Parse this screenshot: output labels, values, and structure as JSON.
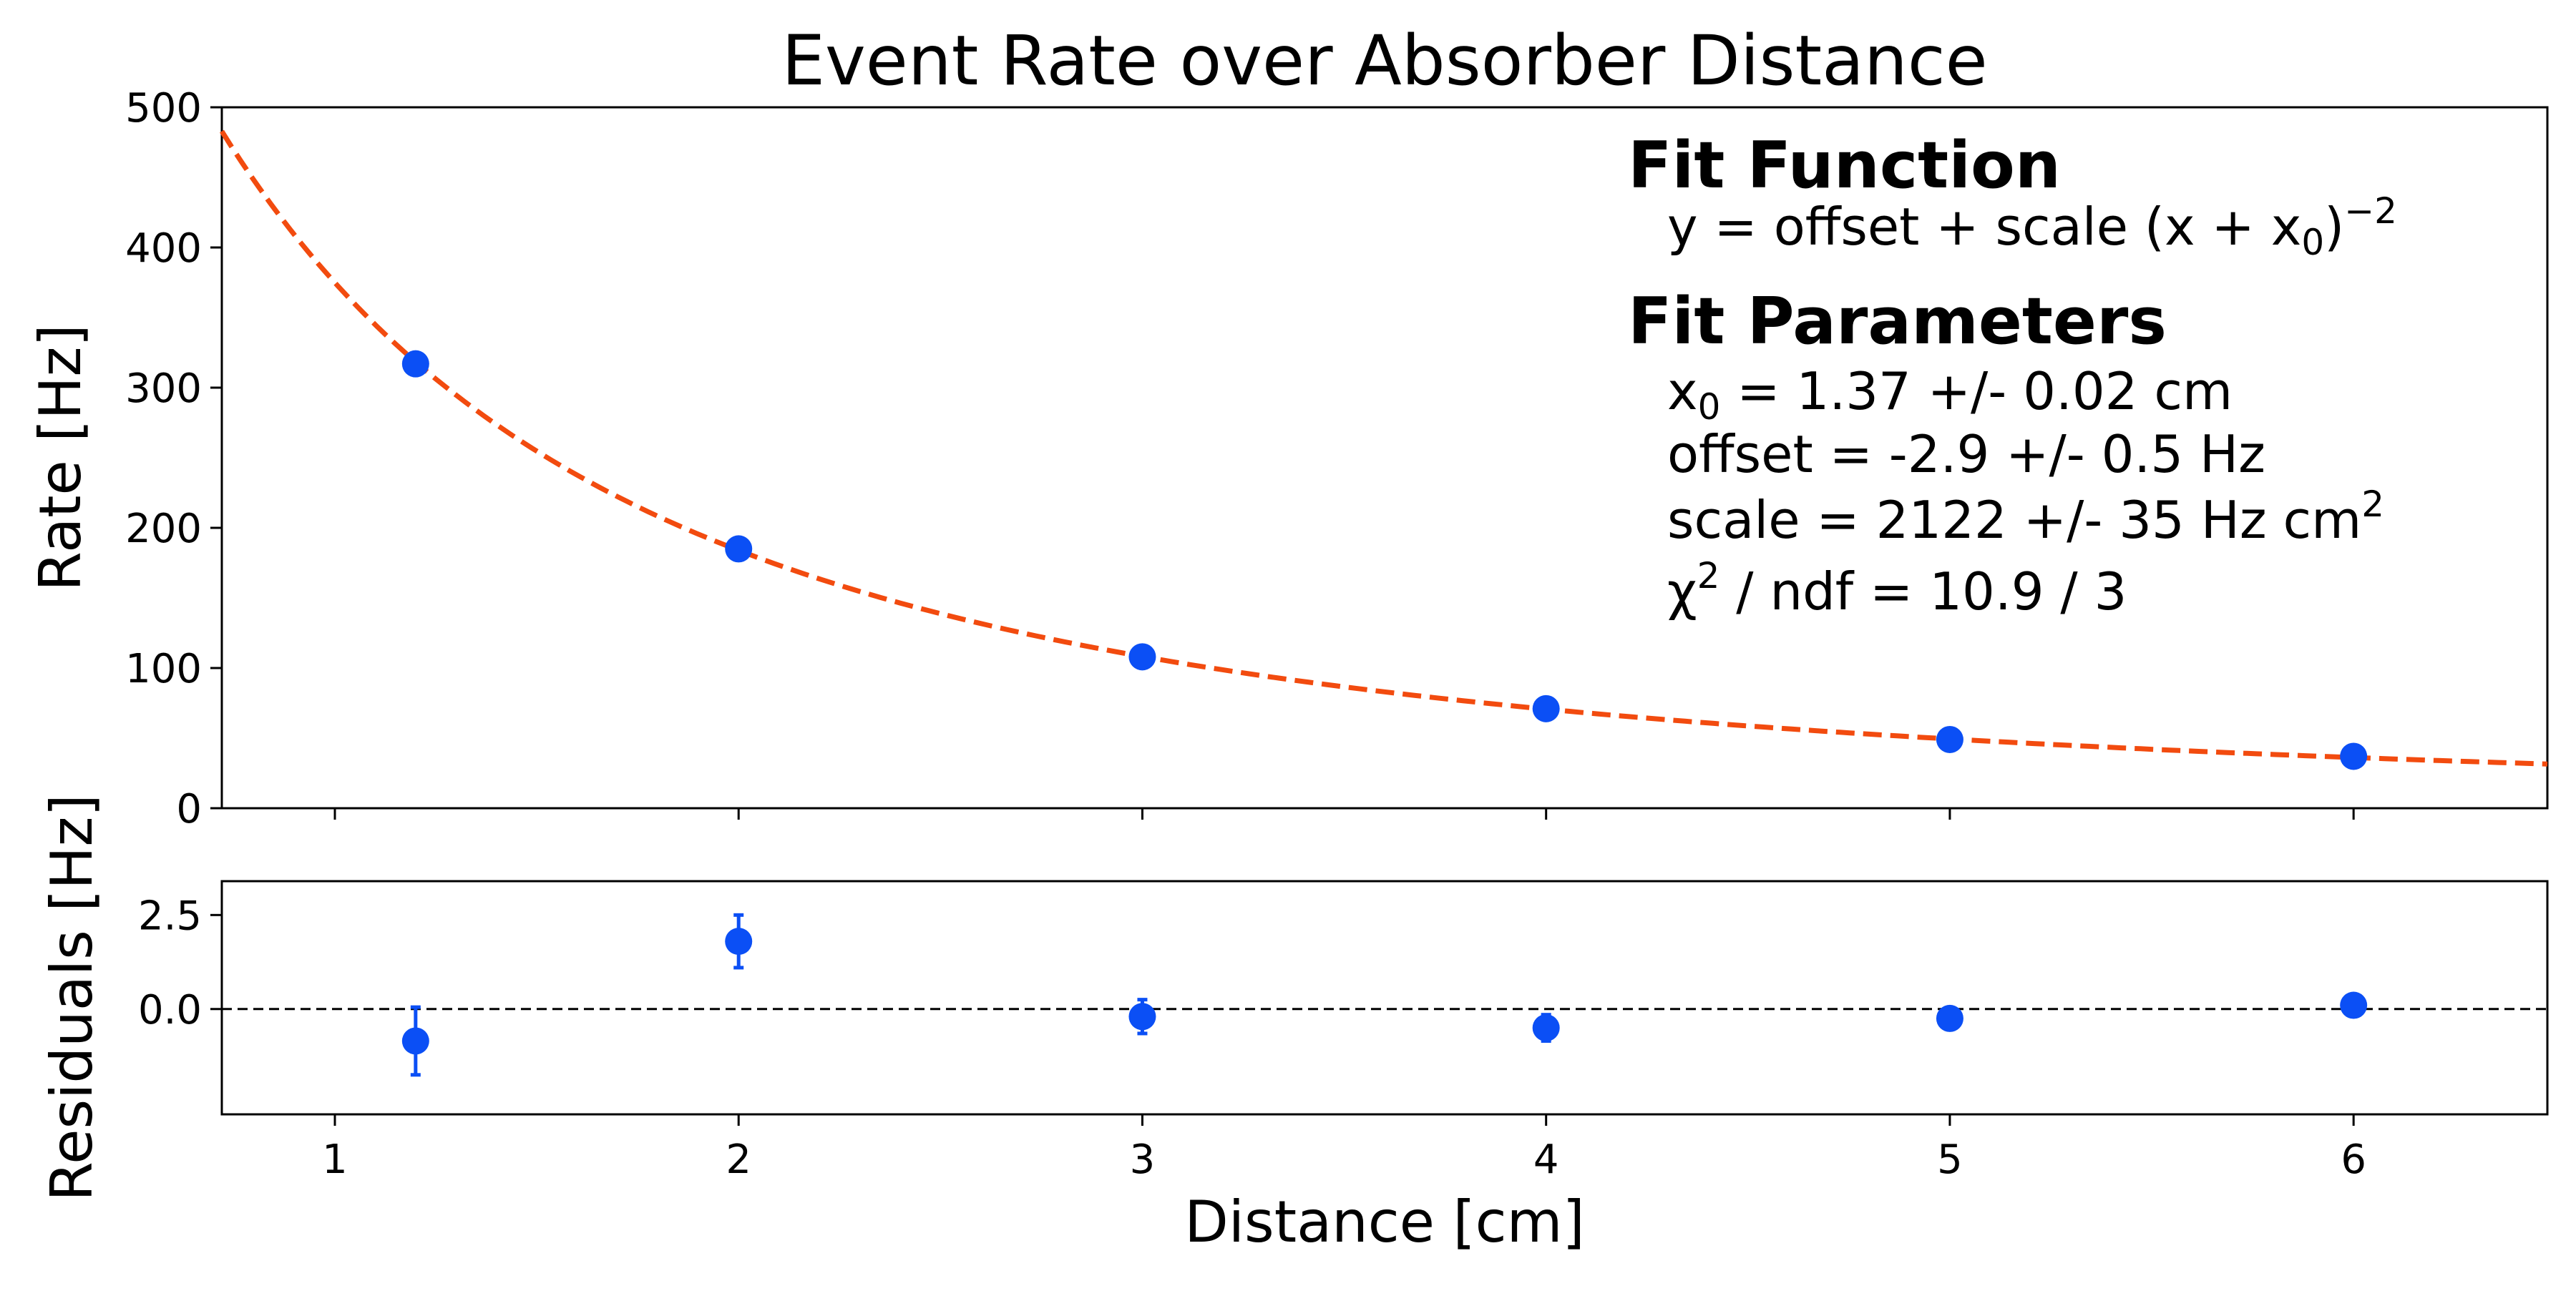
{
  "chart_data": {
    "type": "scatter",
    "title": "Event Rate over Absorber Distance",
    "xlabel": "Distance [cm]",
    "xlim": [
      0.72,
      6.48
    ],
    "x_ticks": [
      1,
      2,
      3,
      4,
      5,
      6
    ],
    "panels": [
      {
        "name": "main",
        "ylabel": "Rate [Hz]",
        "ylim": [
          0,
          500
        ],
        "y_ticks": [
          0,
          100,
          200,
          300,
          400,
          500
        ],
        "y_tick_labels": [
          "0",
          "100",
          "200",
          "300",
          "400",
          "500"
        ],
        "series": [
          {
            "x": [
              1.2,
              2,
              3,
              4,
              5,
              6
            ],
            "y": [
              317,
              185,
              108,
              71,
              49,
              37
            ],
            "color": "#0b4ff5"
          }
        ],
        "fit": {
          "function": "offset + scale*(x + x0)^-2",
          "x0": 1.37,
          "offset": -2.9,
          "scale": 2122,
          "color": "#f24b0f",
          "style": "dashed"
        }
      },
      {
        "name": "residuals",
        "ylabel": "Residuals [Hz]",
        "ylim": [
          -2.8,
          3.4
        ],
        "y_ticks": [
          0,
          2.5
        ],
        "y_tick_labels": [
          "0.0",
          "2.5"
        ],
        "reference_line": 0,
        "series": [
          {
            "x": [
              1.2,
              2,
              3,
              4,
              5,
              6
            ],
            "y": [
              -0.85,
              1.8,
              -0.2,
              -0.5,
              -0.25,
              0.1
            ],
            "yerr": [
              0.9,
              0.7,
              0.45,
              0.35,
              0.15,
              0.1
            ],
            "color": "#0b4ff5"
          }
        ]
      }
    ],
    "annotation": {
      "placement": "top-right",
      "heading_function": "Fit Function",
      "function_text": {
        "pre": "y = offset + scale (x + x",
        "sub": "0",
        "mid": ")",
        "sup": "−2"
      },
      "heading_params": "Fit Parameters",
      "param_x0": {
        "pre": "x",
        "sub": "0",
        "post": " = 1.37 +/- 0.02 cm"
      },
      "param_offset": "offset = -2.9 +/- 0.5 Hz",
      "param_scale": {
        "pre": "scale = 2122 +/- 35 Hz cm",
        "sup": "2"
      },
      "param_chi2": {
        "pre": "χ",
        "sup": "2",
        "post": " / ndf = 10.9 / 3"
      }
    }
  }
}
